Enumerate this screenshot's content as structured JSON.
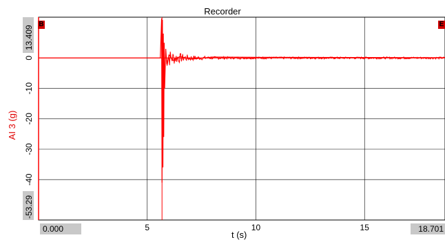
{
  "window": {
    "title": "Recorder"
  },
  "axes": {
    "y_label": "AI 3 (g)",
    "x_label": "t (s)",
    "y_max_box": "13.409",
    "y_min_box": "-53.29",
    "x_min_box": "0.000",
    "x_max_box": "18.701",
    "y_ticks": [
      "0",
      "-10",
      "-20",
      "-30",
      "-40"
    ],
    "x_ticks": [
      "5",
      "10",
      "15"
    ]
  },
  "markers": {
    "left": "B",
    "right": "E"
  },
  "colors": {
    "signal": "#ff0000",
    "grid": "#000000",
    "box": "#c8c8c8"
  },
  "chart_data": {
    "type": "line",
    "title": "Recorder",
    "xlabel": "t (s)",
    "ylabel": "AI 3 (g)",
    "xlim": [
      0.0,
      18.701
    ],
    "ylim": [
      -53.29,
      13.409
    ],
    "grid": true,
    "series": [
      {
        "values_desc": "impact transient at ~5.7 s decaying to 0",
        "x": [
          0,
          5.6,
          5.66,
          5.68,
          5.7,
          5.72,
          5.74,
          5.76,
          5.78,
          5.8,
          5.85,
          5.9,
          6.0,
          6.2,
          6.5,
          7.0,
          8.0,
          10.0,
          15.0,
          18.701
        ],
        "y": [
          0,
          0,
          13.0,
          -41.0,
          12.5,
          -36.0,
          8.0,
          -26.0,
          5.0,
          -10.0,
          3.0,
          -2.0,
          1.0,
          -0.8,
          0.5,
          -0.4,
          0.3,
          0.2,
          0.15,
          0.1
        ]
      }
    ]
  }
}
